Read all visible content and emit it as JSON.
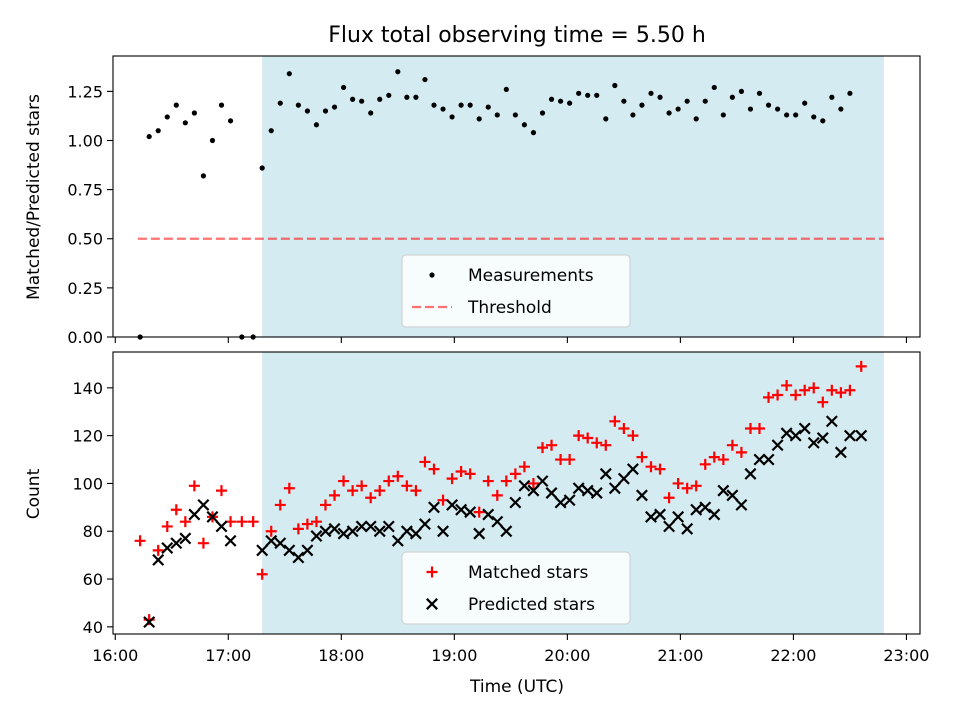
{
  "chart_data": [
    {
      "type": "scatter",
      "panel": "top",
      "title": "Flux total observing time = 5.50 h",
      "xlabel": "",
      "ylabel": "Matched/Predicted stars",
      "xlim": [
        15.98,
        23.12
      ],
      "ylim": [
        0.0,
        1.43
      ],
      "yticks": [
        0.0,
        0.25,
        0.5,
        0.75,
        1.0,
        1.25
      ],
      "ytick_labels": [
        "0.00",
        "0.25",
        "0.50",
        "0.75",
        "1.00",
        "1.25"
      ],
      "xticks": [
        16,
        17,
        18,
        19,
        20,
        21,
        22,
        23
      ],
      "shaded_span": [
        17.3,
        22.8
      ],
      "shade_color": "#add8e6",
      "threshold": {
        "name": "Threshold",
        "value": 0.5,
        "x_range": [
          16.2,
          22.8
        ],
        "color": "#ff0000"
      },
      "series": [
        {
          "name": "Measurements",
          "color": "#000000",
          "marker": "dot",
          "points": [
            [
              16.22,
              0.0
            ],
            [
              16.3,
              1.02
            ],
            [
              16.38,
              1.05
            ],
            [
              16.46,
              1.12
            ],
            [
              16.54,
              1.18
            ],
            [
              16.62,
              1.09
            ],
            [
              16.7,
              1.14
            ],
            [
              16.78,
              0.82
            ],
            [
              16.86,
              1.0
            ],
            [
              16.94,
              1.18
            ],
            [
              17.02,
              1.1
            ],
            [
              17.12,
              0.0
            ],
            [
              17.22,
              0.0
            ],
            [
              17.3,
              0.86
            ],
            [
              17.38,
              1.05
            ],
            [
              17.46,
              1.19
            ],
            [
              17.54,
              1.34
            ],
            [
              17.62,
              1.18
            ],
            [
              17.7,
              1.15
            ],
            [
              17.78,
              1.08
            ],
            [
              17.86,
              1.15
            ],
            [
              17.94,
              1.17
            ],
            [
              18.02,
              1.27
            ],
            [
              18.1,
              1.21
            ],
            [
              18.18,
              1.2
            ],
            [
              18.26,
              1.14
            ],
            [
              18.34,
              1.21
            ],
            [
              18.42,
              1.23
            ],
            [
              18.5,
              1.35
            ],
            [
              18.58,
              1.22
            ],
            [
              18.66,
              1.22
            ],
            [
              18.74,
              1.31
            ],
            [
              18.82,
              1.18
            ],
            [
              18.9,
              1.16
            ],
            [
              18.98,
              1.12
            ],
            [
              19.06,
              1.18
            ],
            [
              19.14,
              1.18
            ],
            [
              19.22,
              1.11
            ],
            [
              19.3,
              1.17
            ],
            [
              19.38,
              1.13
            ],
            [
              19.46,
              1.26
            ],
            [
              19.54,
              1.13
            ],
            [
              19.62,
              1.08
            ],
            [
              19.7,
              1.04
            ],
            [
              19.78,
              1.14
            ],
            [
              19.86,
              1.21
            ],
            [
              19.94,
              1.2
            ],
            [
              20.02,
              1.19
            ],
            [
              20.1,
              1.24
            ],
            [
              20.18,
              1.23
            ],
            [
              20.26,
              1.23
            ],
            [
              20.34,
              1.11
            ],
            [
              20.42,
              1.28
            ],
            [
              20.5,
              1.2
            ],
            [
              20.58,
              1.13
            ],
            [
              20.66,
              1.18
            ],
            [
              20.74,
              1.24
            ],
            [
              20.82,
              1.22
            ],
            [
              20.9,
              1.14
            ],
            [
              20.98,
              1.16
            ],
            [
              21.06,
              1.2
            ],
            [
              21.14,
              1.11
            ],
            [
              21.22,
              1.2
            ],
            [
              21.3,
              1.27
            ],
            [
              21.38,
              1.13
            ],
            [
              21.46,
              1.22
            ],
            [
              21.54,
              1.25
            ],
            [
              21.62,
              1.16
            ],
            [
              21.7,
              1.24
            ],
            [
              21.78,
              1.18
            ],
            [
              21.86,
              1.16
            ],
            [
              21.94,
              1.13
            ],
            [
              22.02,
              1.13
            ],
            [
              22.1,
              1.19
            ],
            [
              22.18,
              1.12
            ],
            [
              22.26,
              1.1
            ],
            [
              22.34,
              1.22
            ],
            [
              22.42,
              1.16
            ],
            [
              22.5,
              1.24
            ]
          ]
        }
      ],
      "legend": {
        "position": "lower-center",
        "entries": [
          "Measurements",
          "Threshold"
        ]
      }
    },
    {
      "type": "scatter",
      "panel": "bottom",
      "title": "",
      "xlabel": "Time (UTC)",
      "ylabel": "Count",
      "xlim": [
        15.98,
        23.12
      ],
      "ylim": [
        37,
        155
      ],
      "yticks": [
        40,
        60,
        80,
        100,
        120,
        140
      ],
      "ytick_labels": [
        "40",
        "60",
        "80",
        "100",
        "120",
        "140"
      ],
      "xticks": [
        16,
        17,
        18,
        19,
        20,
        21,
        22,
        23
      ],
      "xtick_labels": [
        "16:00",
        "17:00",
        "18:00",
        "19:00",
        "20:00",
        "21:00",
        "22:00",
        "23:00"
      ],
      "shaded_span": [
        17.3,
        22.8
      ],
      "shade_color": "#add8e6",
      "series": [
        {
          "name": "Matched stars",
          "color": "#ff0000",
          "marker": "plus",
          "points": [
            [
              16.22,
              76
            ],
            [
              16.3,
              43
            ],
            [
              16.38,
              72
            ],
            [
              16.46,
              82
            ],
            [
              16.54,
              89
            ],
            [
              16.62,
              84
            ],
            [
              16.7,
              99
            ],
            [
              16.78,
              75
            ],
            [
              16.86,
              86
            ],
            [
              16.94,
              97
            ],
            [
              17.02,
              84
            ],
            [
              17.12,
              84
            ],
            [
              17.22,
              84
            ],
            [
              17.3,
              62
            ],
            [
              17.38,
              80
            ],
            [
              17.46,
              91
            ],
            [
              17.54,
              98
            ],
            [
              17.62,
              81
            ],
            [
              17.7,
              83
            ],
            [
              17.78,
              84
            ],
            [
              17.86,
              91
            ],
            [
              17.94,
              95
            ],
            [
              18.02,
              101
            ],
            [
              18.1,
              97
            ],
            [
              18.18,
              99
            ],
            [
              18.26,
              94
            ],
            [
              18.34,
              97
            ],
            [
              18.42,
              101
            ],
            [
              18.5,
              103
            ],
            [
              18.58,
              99
            ],
            [
              18.66,
              97
            ],
            [
              18.74,
              109
            ],
            [
              18.82,
              106
            ],
            [
              18.9,
              93
            ],
            [
              18.98,
              102
            ],
            [
              19.06,
              105
            ],
            [
              19.14,
              104
            ],
            [
              19.22,
              88
            ],
            [
              19.3,
              101
            ],
            [
              19.38,
              95
            ],
            [
              19.46,
              101
            ],
            [
              19.54,
              104
            ],
            [
              19.62,
              107
            ],
            [
              19.7,
              100
            ],
            [
              19.78,
              115
            ],
            [
              19.86,
              116
            ],
            [
              19.94,
              110
            ],
            [
              20.02,
              110
            ],
            [
              20.1,
              120
            ],
            [
              20.18,
              119
            ],
            [
              20.26,
              117
            ],
            [
              20.34,
              116
            ],
            [
              20.42,
              126
            ],
            [
              20.5,
              123
            ],
            [
              20.58,
              120
            ],
            [
              20.66,
              111
            ],
            [
              20.74,
              107
            ],
            [
              20.82,
              106
            ],
            [
              20.9,
              94
            ],
            [
              20.98,
              100
            ],
            [
              21.06,
              98
            ],
            [
              21.14,
              99
            ],
            [
              21.22,
              108
            ],
            [
              21.3,
              111
            ],
            [
              21.38,
              110
            ],
            [
              21.46,
              116
            ],
            [
              21.54,
              113
            ],
            [
              21.62,
              123
            ],
            [
              21.7,
              123
            ],
            [
              21.78,
              136
            ],
            [
              21.86,
              137
            ],
            [
              21.94,
              141
            ],
            [
              22.02,
              137
            ],
            [
              22.1,
              139
            ],
            [
              22.18,
              140
            ],
            [
              22.26,
              134
            ],
            [
              22.34,
              139
            ],
            [
              22.42,
              138
            ],
            [
              22.5,
              139
            ],
            [
              22.6,
              149
            ]
          ]
        },
        {
          "name": "Predicted stars",
          "color": "#000000",
          "marker": "x",
          "points": [
            [
              16.3,
              42
            ],
            [
              16.38,
              68
            ],
            [
              16.46,
              73
            ],
            [
              16.54,
              75
            ],
            [
              16.62,
              77
            ],
            [
              16.7,
              87
            ],
            [
              16.78,
              91
            ],
            [
              16.86,
              86
            ],
            [
              16.94,
              82
            ],
            [
              17.02,
              76
            ],
            [
              17.3,
              72
            ],
            [
              17.38,
              76
            ],
            [
              17.46,
              75
            ],
            [
              17.54,
              72
            ],
            [
              17.62,
              69
            ],
            [
              17.7,
              72
            ],
            [
              17.78,
              78
            ],
            [
              17.86,
              80
            ],
            [
              17.94,
              81
            ],
            [
              18.02,
              79
            ],
            [
              18.1,
              80
            ],
            [
              18.18,
              82
            ],
            [
              18.26,
              82
            ],
            [
              18.34,
              80
            ],
            [
              18.42,
              82
            ],
            [
              18.5,
              76
            ],
            [
              18.58,
              80
            ],
            [
              18.66,
              79
            ],
            [
              18.74,
              83
            ],
            [
              18.82,
              90
            ],
            [
              18.9,
              80
            ],
            [
              18.98,
              91
            ],
            [
              19.06,
              89
            ],
            [
              19.14,
              88
            ],
            [
              19.22,
              79
            ],
            [
              19.3,
              87
            ],
            [
              19.38,
              84
            ],
            [
              19.46,
              80
            ],
            [
              19.54,
              92
            ],
            [
              19.62,
              99
            ],
            [
              19.7,
              97
            ],
            [
              19.78,
              101
            ],
            [
              19.86,
              96
            ],
            [
              19.94,
              92
            ],
            [
              20.02,
              93
            ],
            [
              20.1,
              98
            ],
            [
              20.18,
              97
            ],
            [
              20.26,
              96
            ],
            [
              20.34,
              104
            ],
            [
              20.42,
              98
            ],
            [
              20.5,
              102
            ],
            [
              20.58,
              106
            ],
            [
              20.66,
              95
            ],
            [
              20.74,
              86
            ],
            [
              20.82,
              87
            ],
            [
              20.9,
              82
            ],
            [
              20.98,
              86
            ],
            [
              21.06,
              81
            ],
            [
              21.14,
              89
            ],
            [
              21.22,
              90
            ],
            [
              21.3,
              87
            ],
            [
              21.38,
              97
            ],
            [
              21.46,
              95
            ],
            [
              21.54,
              91
            ],
            [
              21.62,
              104
            ],
            [
              21.7,
              110
            ],
            [
              21.78,
              110
            ],
            [
              21.86,
              116
            ],
            [
              21.94,
              121
            ],
            [
              22.02,
              120
            ],
            [
              22.1,
              123
            ],
            [
              22.18,
              117
            ],
            [
              22.26,
              119
            ],
            [
              22.34,
              126
            ],
            [
              22.42,
              113
            ],
            [
              22.5,
              120
            ],
            [
              22.6,
              120
            ]
          ]
        }
      ],
      "legend": {
        "position": "lower-center",
        "entries": [
          "Matched stars",
          "Predicted stars"
        ]
      }
    }
  ]
}
